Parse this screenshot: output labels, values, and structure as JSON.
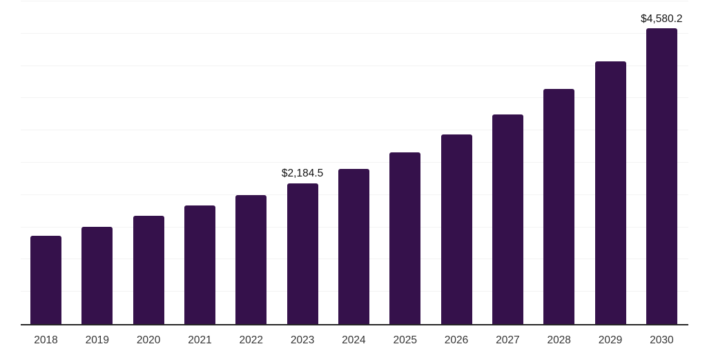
{
  "chart_data": {
    "type": "bar",
    "title": "",
    "xlabel": "",
    "ylabel": "",
    "categories": [
      "2018",
      "2019",
      "2020",
      "2021",
      "2022",
      "2023",
      "2024",
      "2025",
      "2026",
      "2027",
      "2028",
      "2029",
      "2030"
    ],
    "values": [
      1365,
      1510,
      1677,
      1843,
      2000,
      2184.5,
      2404,
      2658,
      2933,
      3248,
      3643,
      4071,
      4580.2
    ],
    "bar_labels": [
      "",
      "",
      "",
      "",
      "",
      "$2,184.5",
      "",
      "",
      "",
      "",
      "",
      "",
      "$4,580.2"
    ],
    "ylim": [
      0,
      5000
    ],
    "gridline_interval": 500,
    "grid": "horizontal-only",
    "legend": "none",
    "y_tick_labels_visible": false
  },
  "style": {
    "bar_color": "#35114b",
    "gridline_color": "#f3f3f3",
    "axis_line_color": "#262626",
    "value_label_color": "#111111",
    "tick_label_color": "#333333",
    "background_color": "#ffffff"
  }
}
